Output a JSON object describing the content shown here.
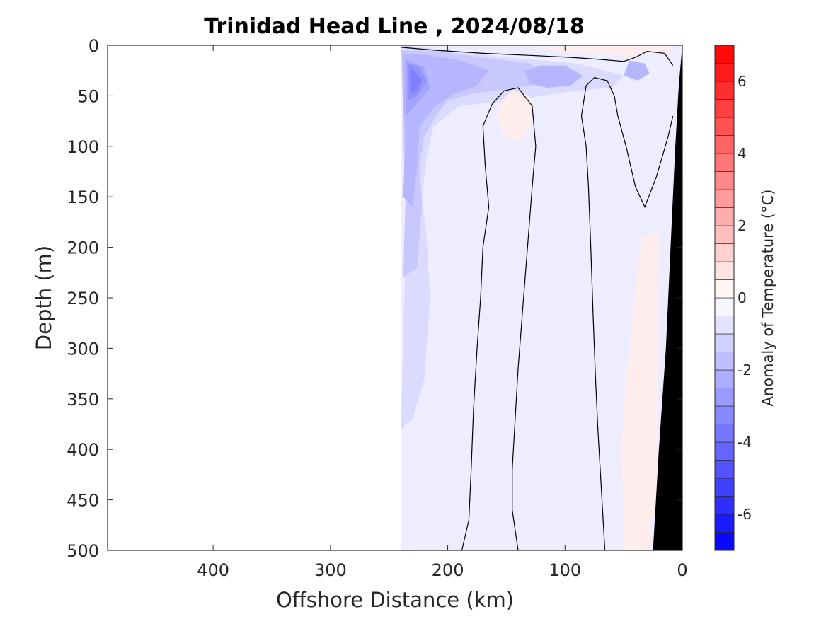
{
  "chart_data": {
    "type": "contour",
    "title": "Trinidad Head Line , 2024/08/18",
    "xlabel": "Offshore Distance (km)",
    "ylabel": "Depth (m)",
    "xlim": [
      490,
      0
    ],
    "ylim": [
      0,
      500
    ],
    "x_reversed": true,
    "y_reversed": true,
    "x_ticks": [
      400,
      300,
      200,
      100,
      0
    ],
    "y_ticks": [
      0,
      50,
      100,
      150,
      200,
      250,
      300,
      350,
      400,
      450,
      500
    ],
    "colorbar": {
      "label": "Anomaly of Temperature (°C)",
      "range": [
        -7,
        7
      ],
      "step": 0.5,
      "ticks": [
        -6,
        -4,
        -2,
        0,
        2,
        4,
        6
      ],
      "colormap": "blue-white-red",
      "low_color": "#0000ff",
      "mid_color": "#ffffff",
      "high_color": "#ff0000"
    },
    "data_extent_km": [
      0,
      240
    ],
    "bathymetry_color": "#000000",
    "regions": [
      {
        "value": -0.5,
        "polygon": [
          [
            240,
            0
          ],
          [
            0,
            0
          ],
          [
            0,
            500
          ],
          [
            240,
            500
          ]
        ]
      },
      {
        "value": -1.0,
        "polygon": [
          [
            240,
            20
          ],
          [
            238,
            60
          ],
          [
            236,
            100
          ],
          [
            236,
            200
          ],
          [
            238,
            300
          ],
          [
            240,
            380
          ],
          [
            230,
            370
          ],
          [
            220,
            330
          ],
          [
            215,
            250
          ],
          [
            218,
            190
          ],
          [
            222,
            150
          ],
          [
            218,
            110
          ],
          [
            212,
            80
          ],
          [
            190,
            60
          ],
          [
            150,
            55
          ],
          [
            120,
            50
          ],
          [
            90,
            45
          ],
          [
            60,
            42
          ],
          [
            50,
            30
          ],
          [
            90,
            18
          ],
          [
            150,
            12
          ],
          [
            200,
            5
          ],
          [
            240,
            0
          ]
        ]
      },
      {
        "value": -1.5,
        "polygon": [
          [
            240,
            0
          ],
          [
            238,
            40
          ],
          [
            238,
            90
          ],
          [
            236,
            150
          ],
          [
            238,
            230
          ],
          [
            226,
            220
          ],
          [
            222,
            160
          ],
          [
            224,
            120
          ],
          [
            220,
            90
          ],
          [
            210,
            70
          ],
          [
            200,
            55
          ],
          [
            180,
            48
          ],
          [
            160,
            45
          ],
          [
            130,
            40
          ],
          [
            110,
            35
          ],
          [
            130,
            18
          ],
          [
            170,
            12
          ],
          [
            210,
            6
          ],
          [
            240,
            5
          ]
        ]
      },
      {
        "value": -2.0,
        "polygon": [
          [
            238,
            8
          ],
          [
            238,
            60
          ],
          [
            236,
            90
          ],
          [
            238,
            150
          ],
          [
            230,
            160
          ],
          [
            226,
            120
          ],
          [
            224,
            80
          ],
          [
            212,
            62
          ],
          [
            195,
            48
          ],
          [
            175,
            40
          ],
          [
            165,
            25
          ],
          [
            190,
            15
          ],
          [
            215,
            10
          ]
        ]
      },
      {
        "value": -2.0,
        "polygon": [
          [
            135,
            25
          ],
          [
            120,
            20
          ],
          [
            100,
            20
          ],
          [
            85,
            30
          ],
          [
            95,
            40
          ],
          [
            115,
            42
          ],
          [
            130,
            38
          ]
        ]
      },
      {
        "value": -2.0,
        "polygon": [
          [
            45,
            15
          ],
          [
            32,
            18
          ],
          [
            28,
            28
          ],
          [
            38,
            35
          ],
          [
            50,
            30
          ]
        ]
      },
      {
        "value": -2.5,
        "polygon": [
          [
            236,
            14
          ],
          [
            236,
            70
          ],
          [
            228,
            60
          ],
          [
            215,
            42
          ],
          [
            220,
            22
          ]
        ]
      },
      {
        "value": -3.0,
        "polygon": [
          [
            234,
            18
          ],
          [
            234,
            55
          ],
          [
            226,
            50
          ],
          [
            218,
            36
          ],
          [
            224,
            22
          ]
        ]
      },
      {
        "value": -3.5,
        "polygon": [
          [
            232,
            22
          ],
          [
            232,
            48
          ],
          [
            226,
            44
          ],
          [
            222,
            34
          ]
        ]
      },
      {
        "value": 0.5,
        "polygon": [
          [
            145,
            45
          ],
          [
            130,
            50
          ],
          [
            128,
            80
          ],
          [
            140,
            95
          ],
          [
            152,
            90
          ],
          [
            158,
            70
          ],
          [
            154,
            55
          ]
        ]
      },
      {
        "value": 0.5,
        "polygon": [
          [
            60,
            0
          ],
          [
            10,
            0
          ],
          [
            10,
            8
          ],
          [
            50,
            10
          ],
          [
            80,
            8
          ],
          [
            110,
            5
          ],
          [
            130,
            2
          ]
        ]
      },
      {
        "value": 0.5,
        "polygon": [
          [
            35,
            190
          ],
          [
            20,
            185
          ],
          [
            22,
            470
          ],
          [
            50,
            470
          ],
          [
            52,
            400
          ],
          [
            48,
            330
          ]
        ]
      },
      {
        "value": 0.5,
        "polygon": [
          [
            50,
            460
          ],
          [
            28,
            450
          ],
          [
            26,
            500
          ],
          [
            50,
            500
          ]
        ]
      }
    ],
    "zero_contours": [
      [
        [
          240,
          2
        ],
        [
          210,
          5
        ],
        [
          170,
          8
        ],
        [
          130,
          10
        ],
        [
          95,
          12
        ],
        [
          70,
          14
        ],
        [
          50,
          16
        ],
        [
          40,
          12
        ],
        [
          30,
          6
        ],
        [
          15,
          8
        ],
        [
          8,
          20
        ]
      ],
      [
        [
          140,
          500
        ],
        [
          145,
          460
        ],
        [
          145,
          420
        ],
        [
          143,
          380
        ],
        [
          140,
          320
        ],
        [
          136,
          260
        ],
        [
          132,
          200
        ],
        [
          128,
          140
        ],
        [
          125,
          100
        ],
        [
          128,
          60
        ],
        [
          140,
          42
        ],
        [
          152,
          45
        ],
        [
          162,
          58
        ],
        [
          170,
          80
        ],
        [
          168,
          120
        ],
        [
          165,
          160
        ],
        [
          170,
          200
        ],
        [
          172,
          250
        ],
        [
          175,
          300
        ],
        [
          178,
          360
        ],
        [
          180,
          420
        ],
        [
          182,
          470
        ],
        [
          188,
          500
        ]
      ],
      [
        [
          66,
          500
        ],
        [
          68,
          460
        ],
        [
          70,
          420
        ],
        [
          72,
          380
        ],
        [
          74,
          330
        ],
        [
          76,
          270
        ],
        [
          78,
          200
        ],
        [
          80,
          140
        ],
        [
          82,
          100
        ],
        [
          86,
          70
        ],
        [
          82,
          40
        ],
        [
          75,
          32
        ],
        [
          64,
          35
        ],
        [
          58,
          50
        ],
        [
          55,
          70
        ],
        [
          48,
          100
        ],
        [
          40,
          140
        ],
        [
          32,
          160
        ],
        [
          22,
          130
        ],
        [
          12,
          90
        ],
        [
          8,
          70
        ]
      ]
    ],
    "bathymetry": [
      [
        0,
        0
      ],
      [
        0,
        500
      ],
      [
        25,
        500
      ],
      [
        20,
        400
      ],
      [
        14,
        300
      ],
      [
        10,
        200
      ],
      [
        6,
        100
      ],
      [
        3,
        40
      ],
      [
        0,
        0
      ]
    ]
  }
}
